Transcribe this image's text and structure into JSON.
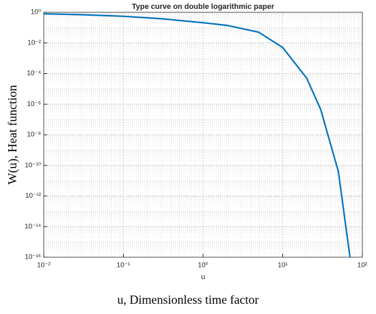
{
  "chart_data": {
    "type": "line",
    "title": "Type curve on double logarithmic paper",
    "xlabel": "u",
    "ylabel": "W(u), Heat function",
    "caption": "u, Dimensionless time factor",
    "xscale": "log",
    "yscale": "log",
    "grid": true,
    "minor_grid": true,
    "xlim": [
      0.01,
      100
    ],
    "ylim": [
      1e-16,
      1
    ],
    "xticks": [
      {
        "value": 0.01,
        "label": "10⁻²"
      },
      {
        "value": 0.1,
        "label": "10⁻¹"
      },
      {
        "value": 1,
        "label": "10⁰"
      },
      {
        "value": 10,
        "label": "10¹"
      },
      {
        "value": 100,
        "label": "10²"
      }
    ],
    "yticks": [
      {
        "value": 1,
        "label": "10⁰"
      },
      {
        "value": 0.01,
        "label": "10⁻²"
      },
      {
        "value": 0.0001,
        "label": "10⁻⁴"
      },
      {
        "value": 1e-06,
        "label": "10⁻⁶"
      },
      {
        "value": 1e-08,
        "label": "10⁻⁸"
      },
      {
        "value": 1e-10,
        "label": "10⁻¹⁰"
      },
      {
        "value": 1e-12,
        "label": "10⁻¹²"
      },
      {
        "value": 1e-14,
        "label": "10⁻¹⁴"
      },
      {
        "value": 1e-16,
        "label": "10⁻¹⁶"
      }
    ],
    "x": [
      0.01,
      0.03,
      0.1,
      0.3,
      1,
      2,
      5,
      10,
      20,
      30,
      50,
      70
    ],
    "series": [
      {
        "color": "#0072bd",
        "values": [
          0.8,
          0.7,
          0.55,
          0.38,
          0.21,
          0.14,
          0.05,
          0.005,
          5e-05,
          4.5e-07,
          4e-11,
          1e-16
        ]
      }
    ]
  }
}
